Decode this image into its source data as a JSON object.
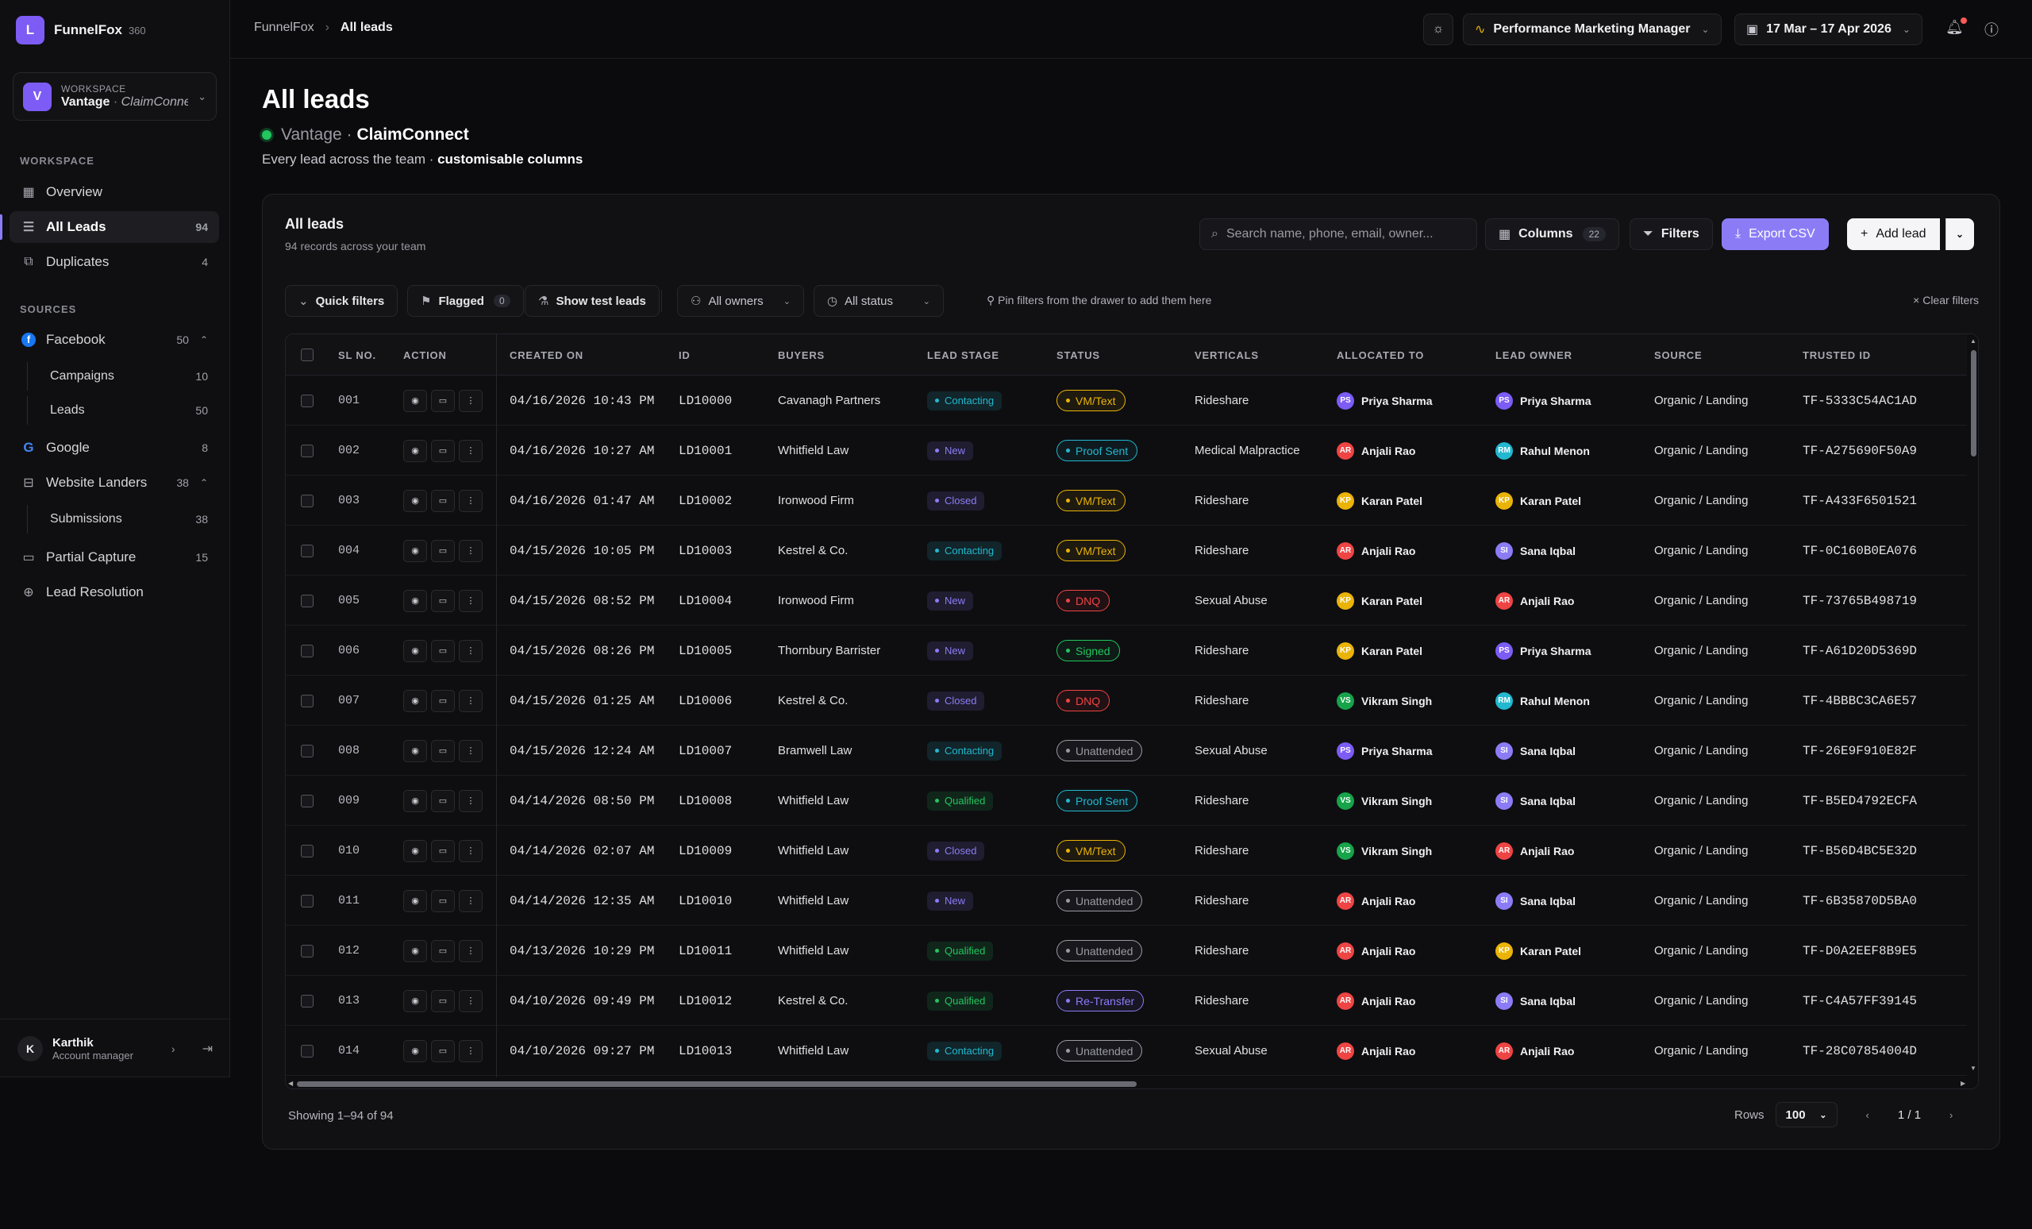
{
  "brand": {
    "logo_letter": "L",
    "name": "FunnelFox",
    "sub": "360"
  },
  "workspace": {
    "logo_letter": "V",
    "label": "WORKSPACE",
    "name": "Vantage",
    "sub": "ClaimConnect"
  },
  "nav": {
    "workspace_label": "WORKSPACE",
    "overview": "Overview",
    "all_leads": "All Leads",
    "all_leads_count": "94",
    "duplicates": "Duplicates",
    "duplicates_count": "4",
    "sources_label": "SOURCES",
    "facebook": "Facebook",
    "facebook_count": "50",
    "campaigns": "Campaigns",
    "campaigns_count": "10",
    "leads": "Leads",
    "leads_count": "50",
    "google": "Google",
    "google_count": "8",
    "website_landers": "Website Landers",
    "website_landers_count": "38",
    "submissions": "Submissions",
    "submissions_count": "38",
    "partial_capture": "Partial Capture",
    "partial_capture_count": "15",
    "lead_resolution": "Lead Resolution"
  },
  "user": {
    "initial": "K",
    "name": "Karthik",
    "role": "Account manager"
  },
  "topbar": {
    "crumb_root": "FunnelFox",
    "crumb_current": "All leads",
    "role_select": "Performance Marketing Manager",
    "date_range": "17 Mar – 17 Apr 2026"
  },
  "header": {
    "title": "All leads",
    "sub_a": "Vantage ·",
    "sub_b": "ClaimConnect",
    "desc_a": "Every lead across the team · ",
    "desc_b": "customisable columns"
  },
  "panel": {
    "title": "All leads",
    "count": "94 records across your team",
    "search_placeholder": "Search name, phone, email, owner...",
    "columns_label": "Columns",
    "columns_count": "22",
    "filters_label": "Filters",
    "export_label": "Export CSV",
    "add_label": "Add lead",
    "quick_filters": "Quick filters",
    "flagged": "Flagged",
    "flagged_count": "0",
    "show_test": "Show test leads",
    "all_owners": "All owners",
    "all_status": "All status",
    "pin_hint": "Pin filters from the drawer to add them here",
    "clear": "Clear filters"
  },
  "columns": [
    "SL NO.",
    "ACTION",
    "CREATED ON",
    "ID",
    "BUYERS",
    "LEAD STAGE",
    "STATUS",
    "VERTICALS",
    "ALLOCATED TO",
    "LEAD OWNER",
    "SOURCE",
    "TRUSTED ID"
  ],
  "colors": {
    "stage": {
      "Contacting": "#22b8cf",
      "New": "#8b7cf6",
      "Closed": "#8b7cf6",
      "Qualified": "#22c55e"
    },
    "status": {
      "VM/Text": "#eab308",
      "Proof Sent": "#22b8cf",
      "DNQ": "#ef4444",
      "Signed": "#22c55e",
      "Unattended": "#9a9aa2",
      "Re-Transfer": "#8b7cf6"
    },
    "avatars": {
      "PS": "#7c5cf5",
      "AR": "#ef4444",
      "KP": "#eab308",
      "RM": "#22b8cf",
      "SI": "#8b7cf6",
      "VS": "#16a34a"
    }
  },
  "rows": [
    {
      "sl": "001",
      "created": "04/16/2026 10:43 PM",
      "id": "LD10000",
      "buyer": "Cavanagh Partners",
      "stage": "Contacting",
      "status": "VM/Text",
      "vertical": "Rideshare",
      "alloc_i": "PS",
      "alloc": "Priya Sharma",
      "owner_i": "PS",
      "owner": "Priya Sharma",
      "source": "Organic / Landing",
      "tid": "TF-5333C54AC1AD"
    },
    {
      "sl": "002",
      "created": "04/16/2026 10:27 AM",
      "id": "LD10001",
      "buyer": "Whitfield Law",
      "stage": "New",
      "status": "Proof Sent",
      "vertical": "Medical Malpractice",
      "alloc_i": "AR",
      "alloc": "Anjali Rao",
      "owner_i": "RM",
      "owner": "Rahul Menon",
      "source": "Organic / Landing",
      "tid": "TF-A275690F50A9"
    },
    {
      "sl": "003",
      "created": "04/16/2026 01:47 AM",
      "id": "LD10002",
      "buyer": "Ironwood Firm",
      "stage": "Closed",
      "status": "VM/Text",
      "vertical": "Rideshare",
      "alloc_i": "KP",
      "alloc": "Karan Patel",
      "owner_i": "KP",
      "owner": "Karan Patel",
      "source": "Organic / Landing",
      "tid": "TF-A433F6501521"
    },
    {
      "sl": "004",
      "created": "04/15/2026 10:05 PM",
      "id": "LD10003",
      "buyer": "Kestrel & Co.",
      "stage": "Contacting",
      "status": "VM/Text",
      "vertical": "Rideshare",
      "alloc_i": "AR",
      "alloc": "Anjali Rao",
      "owner_i": "SI",
      "owner": "Sana Iqbal",
      "source": "Organic / Landing",
      "tid": "TF-0C160B0EA076"
    },
    {
      "sl": "005",
      "created": "04/15/2026 08:52 PM",
      "id": "LD10004",
      "buyer": "Ironwood Firm",
      "stage": "New",
      "status": "DNQ",
      "vertical": "Sexual Abuse",
      "alloc_i": "KP",
      "alloc": "Karan Patel",
      "owner_i": "AR",
      "owner": "Anjali Rao",
      "source": "Organic / Landing",
      "tid": "TF-73765B498719"
    },
    {
      "sl": "006",
      "created": "04/15/2026 08:26 PM",
      "id": "LD10005",
      "buyer": "Thornbury Barrister",
      "stage": "New",
      "status": "Signed",
      "vertical": "Rideshare",
      "alloc_i": "KP",
      "alloc": "Karan Patel",
      "owner_i": "PS",
      "owner": "Priya Sharma",
      "source": "Organic / Landing",
      "tid": "TF-A61D20D5369D"
    },
    {
      "sl": "007",
      "created": "04/15/2026 01:25 AM",
      "id": "LD10006",
      "buyer": "Kestrel & Co.",
      "stage": "Closed",
      "status": "DNQ",
      "vertical": "Rideshare",
      "alloc_i": "VS",
      "alloc": "Vikram Singh",
      "owner_i": "RM",
      "owner": "Rahul Menon",
      "source": "Organic / Landing",
      "tid": "TF-4BBBC3CA6E57"
    },
    {
      "sl": "008",
      "created": "04/15/2026 12:24 AM",
      "id": "LD10007",
      "buyer": "Bramwell Law",
      "stage": "Contacting",
      "status": "Unattended",
      "vertical": "Sexual Abuse",
      "alloc_i": "PS",
      "alloc": "Priya Sharma",
      "owner_i": "SI",
      "owner": "Sana Iqbal",
      "source": "Organic / Landing",
      "tid": "TF-26E9F910E82F"
    },
    {
      "sl": "009",
      "created": "04/14/2026 08:50 PM",
      "id": "LD10008",
      "buyer": "Whitfield Law",
      "stage": "Qualified",
      "status": "Proof Sent",
      "vertical": "Rideshare",
      "alloc_i": "VS",
      "alloc": "Vikram Singh",
      "owner_i": "SI",
      "owner": "Sana Iqbal",
      "source": "Organic / Landing",
      "tid": "TF-B5ED4792ECFA"
    },
    {
      "sl": "010",
      "created": "04/14/2026 02:07 AM",
      "id": "LD10009",
      "buyer": "Whitfield Law",
      "stage": "Closed",
      "status": "VM/Text",
      "vertical": "Rideshare",
      "alloc_i": "VS",
      "alloc": "Vikram Singh",
      "owner_i": "AR",
      "owner": "Anjali Rao",
      "source": "Organic / Landing",
      "tid": "TF-B56D4BC5E32D"
    },
    {
      "sl": "011",
      "created": "04/14/2026 12:35 AM",
      "id": "LD10010",
      "buyer": "Whitfield Law",
      "stage": "New",
      "status": "Unattended",
      "vertical": "Rideshare",
      "alloc_i": "AR",
      "alloc": "Anjali Rao",
      "owner_i": "SI",
      "owner": "Sana Iqbal",
      "source": "Organic / Landing",
      "tid": "TF-6B35870D5BA0"
    },
    {
      "sl": "012",
      "created": "04/13/2026 10:29 PM",
      "id": "LD10011",
      "buyer": "Whitfield Law",
      "stage": "Qualified",
      "status": "Unattended",
      "vertical": "Rideshare",
      "alloc_i": "AR",
      "alloc": "Anjali Rao",
      "owner_i": "KP",
      "owner": "Karan Patel",
      "source": "Organic / Landing",
      "tid": "TF-D0A2EEF8B9E5"
    },
    {
      "sl": "013",
      "created": "04/10/2026 09:49 PM",
      "id": "LD10012",
      "buyer": "Kestrel & Co.",
      "stage": "Qualified",
      "status": "Re-Transfer",
      "vertical": "Rideshare",
      "alloc_i": "AR",
      "alloc": "Anjali Rao",
      "owner_i": "SI",
      "owner": "Sana Iqbal",
      "source": "Organic / Landing",
      "tid": "TF-C4A57FF39145"
    },
    {
      "sl": "014",
      "created": "04/10/2026 09:27 PM",
      "id": "LD10013",
      "buyer": "Whitfield Law",
      "stage": "Contacting",
      "status": "Unattended",
      "vertical": "Sexual Abuse",
      "alloc_i": "AR",
      "alloc": "Anjali Rao",
      "owner_i": "AR",
      "owner": "Anjali Rao",
      "source": "Organic / Landing",
      "tid": "TF-28C07854004D"
    }
  ],
  "footer": {
    "showing": "Showing 1–94 of 94",
    "rows_label": "Rows",
    "rows_value": "100",
    "page": "1 / 1"
  }
}
